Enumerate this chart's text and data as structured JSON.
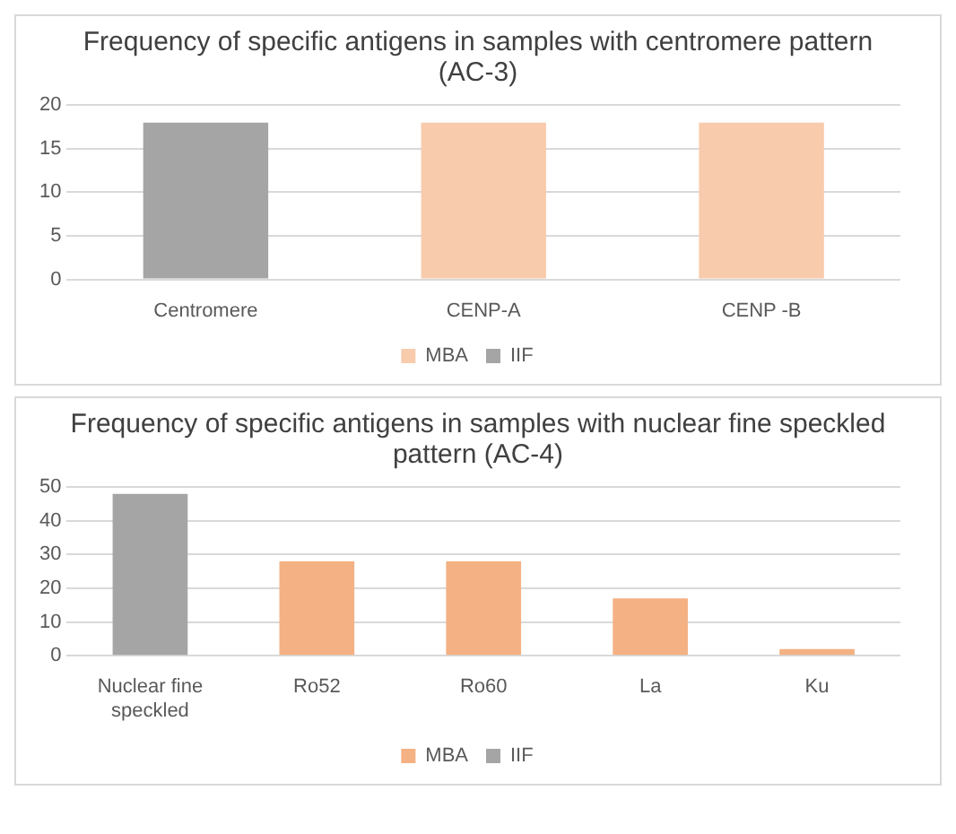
{
  "chart_data": [
    {
      "type": "bar",
      "title": "Frequency of specific antigens in samples with centromere pattern (AC-3)",
      "categories": [
        "Centromere",
        "CENP-A",
        "CENP -B"
      ],
      "stacked": true,
      "series": [
        {
          "name": "MBA",
          "color": "#f8cbad",
          "values": [
            null,
            18,
            18
          ]
        },
        {
          "name": "IIF",
          "color": "#a5a5a5",
          "values": [
            18,
            null,
            null
          ]
        }
      ],
      "ylim": [
        0,
        20
      ],
      "yticks": [
        0,
        5,
        10,
        15,
        20
      ],
      "grid": "y",
      "legend": "bottom"
    },
    {
      "type": "bar",
      "title": "Frequency of specific antigens in samples with nuclear fine speckled pattern (AC-4)",
      "categories": [
        "Nuclear fine speckled",
        "Ro52",
        "Ro60",
        "La",
        "Ku"
      ],
      "stacked": true,
      "series": [
        {
          "name": "MBA",
          "color": "#f4b183",
          "values": [
            null,
            28,
            28,
            17,
            2
          ]
        },
        {
          "name": "IIF",
          "color": "#a5a5a5",
          "values": [
            48,
            null,
            null,
            null,
            null
          ]
        }
      ],
      "ylim": [
        0,
        50
      ],
      "yticks": [
        0,
        10,
        20,
        30,
        40,
        50
      ],
      "grid": "y",
      "legend": "bottom"
    }
  ]
}
